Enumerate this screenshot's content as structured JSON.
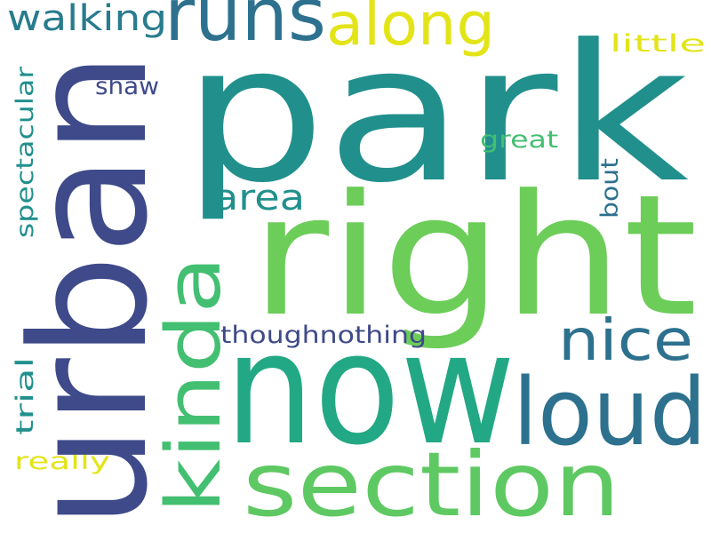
{
  "colors": {
    "background": "#ffffff",
    "yellow": "#e3e418",
    "light_green": "#6ccd59",
    "green": "#43bf71",
    "teal": "#21908d",
    "blue_teal": "#2d718e",
    "indigo": "#3e4a89"
  },
  "words": {
    "park": "park",
    "urban": "urban",
    "right": "right",
    "now": "now",
    "runs": "runs",
    "along": "along",
    "walking": "walking",
    "section": "section",
    "kinda": "kinda",
    "loud": "loud",
    "nice": "nice",
    "area": "area",
    "thoughnothing": "thoughnothing",
    "spectacular": "spectacular",
    "shaw": "shaw",
    "great": "great",
    "bout": "bout",
    "little": "little",
    "trial": "trial",
    "really": "really"
  }
}
